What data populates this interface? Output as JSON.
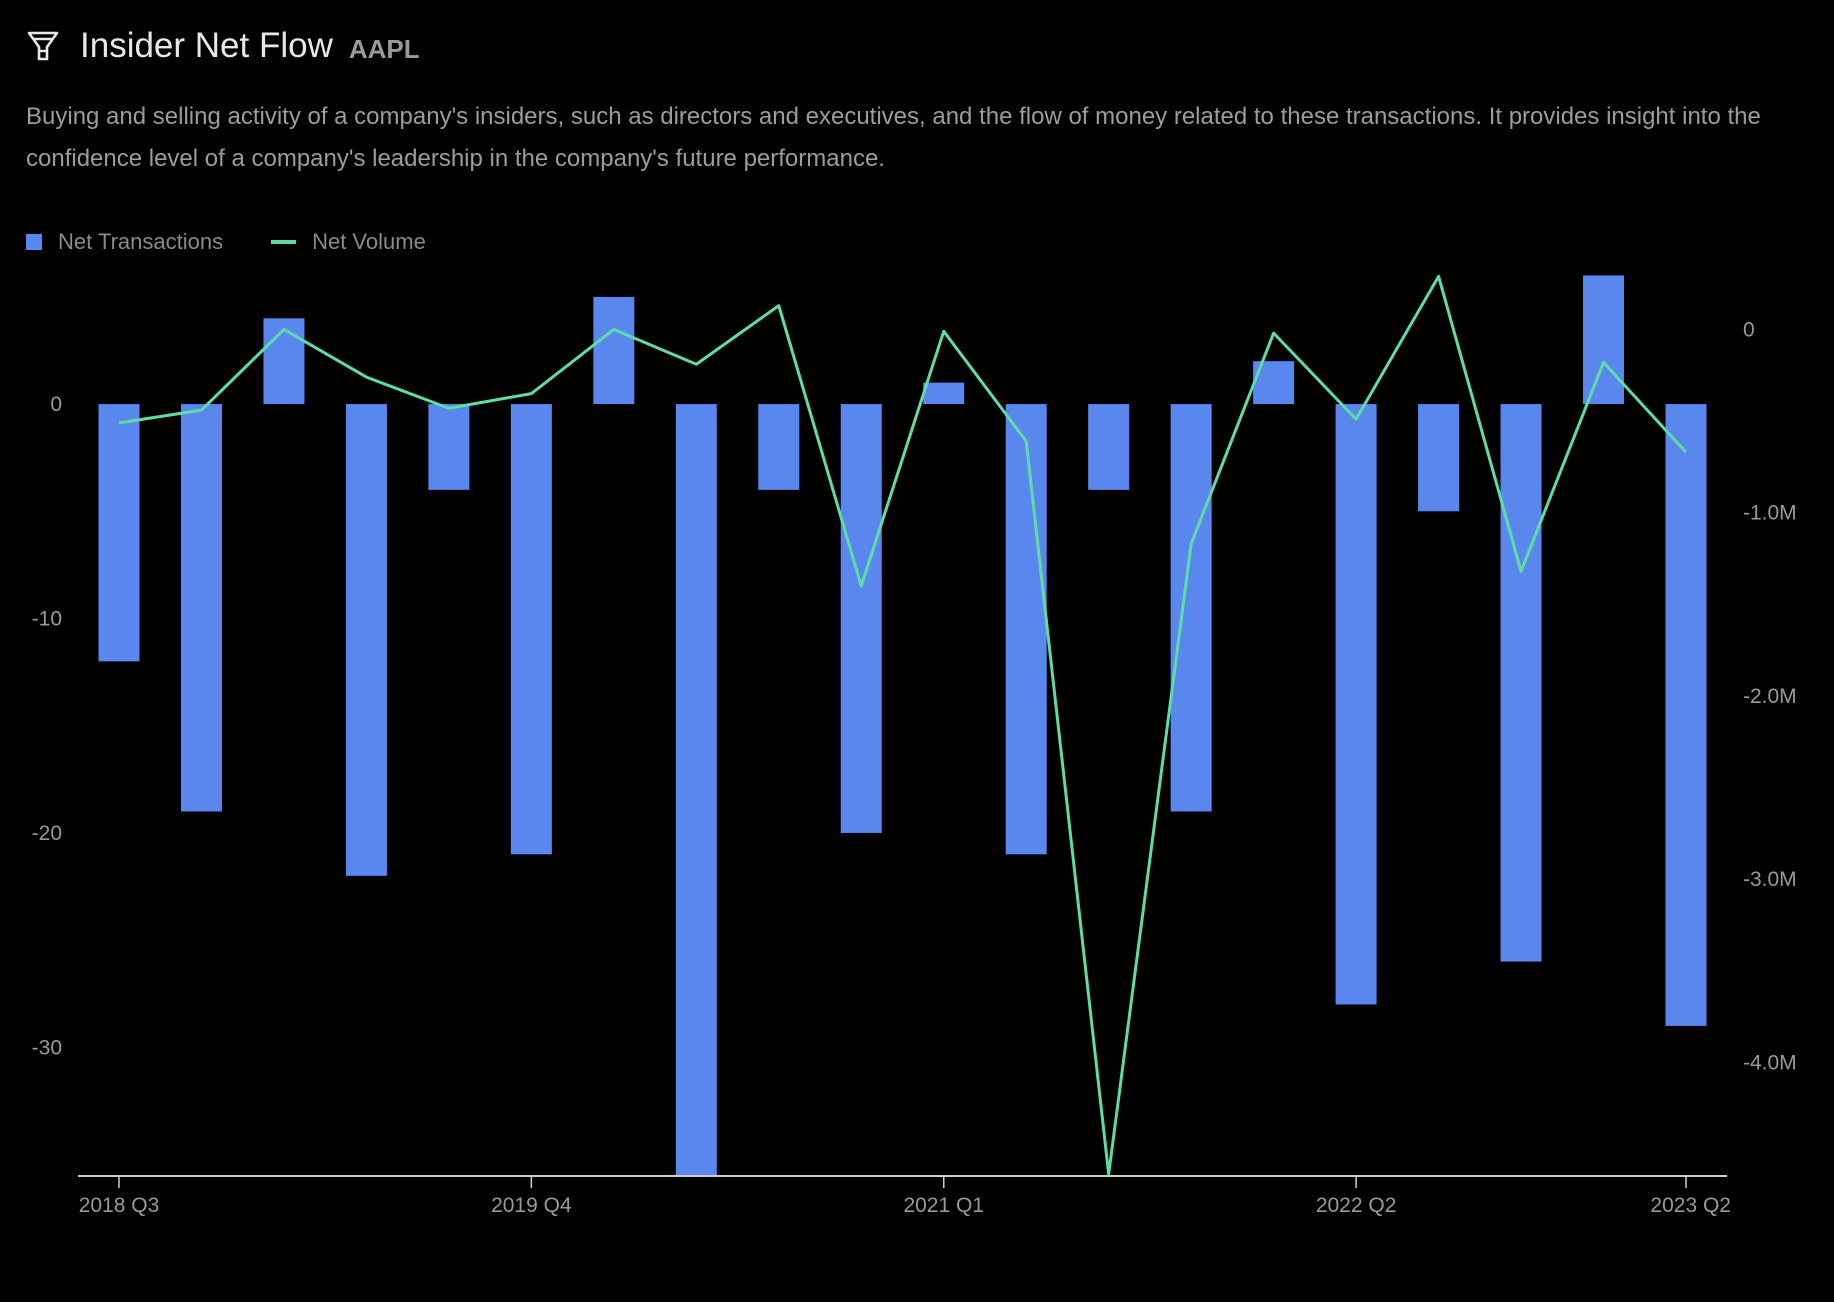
{
  "header": {
    "icon": "funnel-icon",
    "title": "Insider Net Flow",
    "ticker": "AAPL"
  },
  "description": "Buying and selling activity of a company's insiders, such as directors and executives, and the flow of money related to these transactions. It provides insight into the confidence level of a company's leadership in the company's future performance.",
  "colors": {
    "bars": "#5a87ee",
    "line": "#5fdca3",
    "background": "#000000"
  },
  "chart_data": {
    "type": "bar+line",
    "legend_placement": "top-left",
    "grid": false,
    "categories": [
      "2018 Q3",
      "2018 Q4",
      "2019 Q1",
      "2019 Q2",
      "2019 Q3",
      "2019 Q4",
      "2020 Q1",
      "2020 Q2",
      "2020 Q3",
      "2020 Q4",
      "2021 Q1",
      "2021 Q2",
      "2021 Q3",
      "2021 Q4",
      "2022 Q1",
      "2022 Q2",
      "2022 Q3",
      "2022 Q4",
      "2023 Q1",
      "2023 Q2"
    ],
    "x_tick_labels": [
      "2018 Q3",
      "2019 Q4",
      "2021 Q1",
      "2022 Q2",
      "2023 Q2"
    ],
    "series": [
      {
        "name": "Net Transactions",
        "type": "bar",
        "axis": "left",
        "values": [
          -12,
          -19,
          4,
          -22,
          -4,
          -21,
          5,
          -36,
          -4,
          -20,
          1,
          -21,
          -4,
          -19,
          2,
          -28,
          -5,
          -26,
          6,
          -29
        ]
      },
      {
        "name": "Net Volume",
        "type": "line",
        "axis": "right",
        "values": [
          -510000,
          -440000,
          0,
          -260000,
          -430000,
          -350000,
          0,
          -190000,
          130000,
          -1400000,
          -10000,
          -610000,
          -4610000,
          -1170000,
          -20000,
          -490000,
          290000,
          -1320000,
          -180000,
          -670000
        ]
      }
    ],
    "y_left": {
      "ylim": [
        -36,
        6.3
      ],
      "ticks": [
        0,
        -10,
        -20,
        -30
      ],
      "tick_labels": [
        "0",
        "-10",
        "-20",
        "-30"
      ]
    },
    "y_right": {
      "ylim": [
        -4620000,
        330000
      ],
      "ticks": [
        0,
        -1000000,
        -2000000,
        -3000000,
        -4000000
      ],
      "tick_labels": [
        "0",
        "-1.0M",
        "-2.0M",
        "-3.0M",
        "-4.0M"
      ]
    }
  }
}
